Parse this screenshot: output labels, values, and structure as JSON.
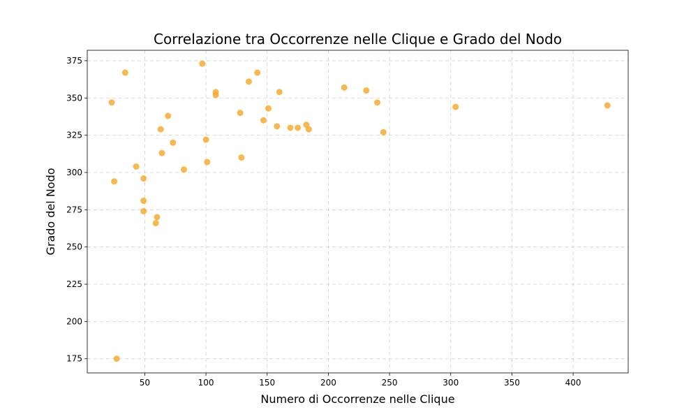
{
  "chart_data": {
    "type": "scatter",
    "title": "Correlazione tra Occorrenze nelle Clique e Grado del Nodo",
    "xlabel": "Numero di Occorrenze nelle Clique",
    "ylabel": "Grado del Nodo",
    "xlim": [
      3,
      445
    ],
    "ylim": [
      165.5,
      382
    ],
    "xticks": [
      50,
      100,
      150,
      200,
      250,
      300,
      350,
      400
    ],
    "yticks": [
      175,
      200,
      225,
      250,
      275,
      300,
      325,
      350,
      375
    ],
    "grid": true,
    "color": "#f5a623",
    "points": [
      {
        "x": 23,
        "y": 347
      },
      {
        "x": 25,
        "y": 294
      },
      {
        "x": 27,
        "y": 175
      },
      {
        "x": 34,
        "y": 367
      },
      {
        "x": 43,
        "y": 304
      },
      {
        "x": 49,
        "y": 296
      },
      {
        "x": 49,
        "y": 281
      },
      {
        "x": 49,
        "y": 274
      },
      {
        "x": 59,
        "y": 266
      },
      {
        "x": 60,
        "y": 270
      },
      {
        "x": 63,
        "y": 329
      },
      {
        "x": 64,
        "y": 313
      },
      {
        "x": 69,
        "y": 338
      },
      {
        "x": 73,
        "y": 320
      },
      {
        "x": 82,
        "y": 302
      },
      {
        "x": 97,
        "y": 373
      },
      {
        "x": 100,
        "y": 322
      },
      {
        "x": 101,
        "y": 307
      },
      {
        "x": 108,
        "y": 354
      },
      {
        "x": 108,
        "y": 352
      },
      {
        "x": 128,
        "y": 340
      },
      {
        "x": 129,
        "y": 310
      },
      {
        "x": 135,
        "y": 361
      },
      {
        "x": 142,
        "y": 367
      },
      {
        "x": 147,
        "y": 335
      },
      {
        "x": 151,
        "y": 343
      },
      {
        "x": 158,
        "y": 331
      },
      {
        "x": 160,
        "y": 354
      },
      {
        "x": 169,
        "y": 330
      },
      {
        "x": 175,
        "y": 330
      },
      {
        "x": 182,
        "y": 332
      },
      {
        "x": 184,
        "y": 329
      },
      {
        "x": 213,
        "y": 357
      },
      {
        "x": 231,
        "y": 355
      },
      {
        "x": 240,
        "y": 347
      },
      {
        "x": 245,
        "y": 327
      },
      {
        "x": 304,
        "y": 344
      },
      {
        "x": 428,
        "y": 345
      }
    ]
  }
}
